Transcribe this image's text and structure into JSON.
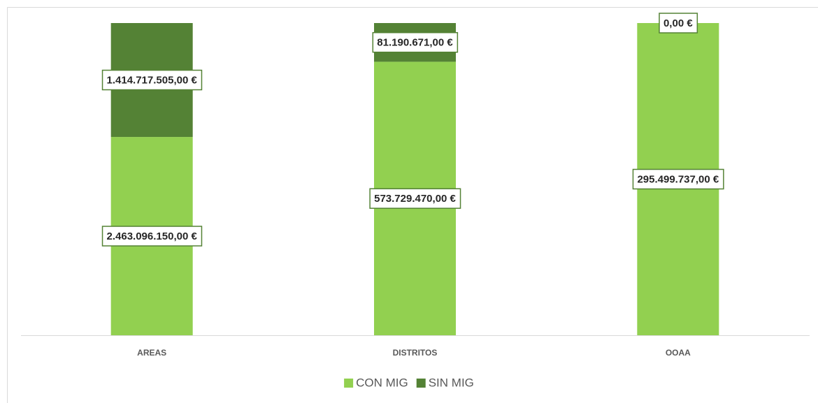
{
  "chart_data": {
    "type": "bar",
    "stacking": "percent",
    "categories": [
      "AREAS",
      "DISTRITOS",
      "OOAA"
    ],
    "series": [
      {
        "name": "CON MIG",
        "color": "#92d050",
        "values": [
          2463096150,
          573729470,
          295499737
        ],
        "value_labels": [
          "2.463.096.150,00 €",
          "573.729.470,00 €",
          "295.499.737,00 €"
        ]
      },
      {
        "name": "SIN MIG",
        "color": "#548235",
        "values": [
          1414717505,
          81190671,
          0
        ],
        "value_labels": [
          "1.414.717.505,00 €",
          "81.190.671,00 €",
          "0,00 €"
        ]
      }
    ],
    "legend": "bottom"
  }
}
